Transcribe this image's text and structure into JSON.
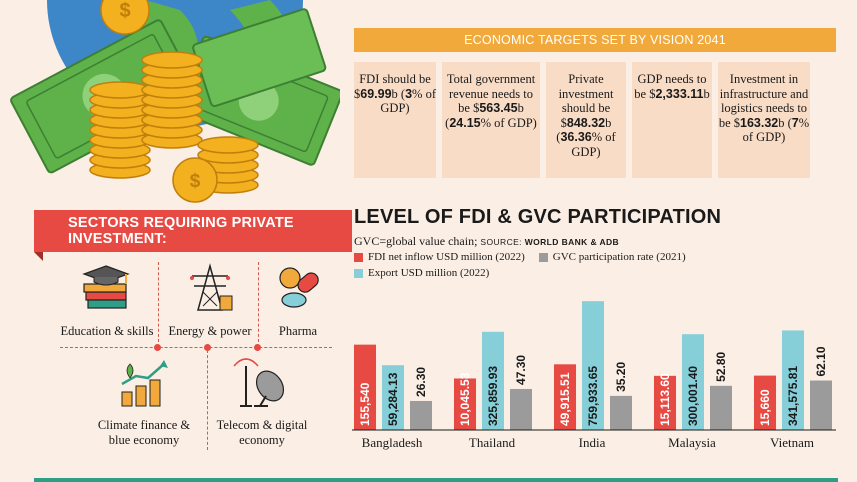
{
  "vision": {
    "header": "ECONOMIC TARGETS SET BY VISION 2041",
    "targets": [
      {
        "pre": "FDI should be $",
        "bold": "69.99",
        "post": "b (",
        "bold2": "3",
        "post2": "% of GDP)"
      },
      {
        "pre": "Total government revenue needs to be $",
        "bold": "563.45",
        "post": "b (",
        "bold2": "24.15",
        "post2": "% of GDP)"
      },
      {
        "pre": "Private investment should be $",
        "bold": "848.32",
        "post": "b (",
        "bold2": "36.36",
        "post2": "% of GDP)"
      },
      {
        "pre": "GDP needs to be $",
        "bold": "2,333.11",
        "post": "b",
        "bold2": "",
        "post2": ""
      },
      {
        "pre": "Investment in infrastructure and logistics needs to be $",
        "bold": "163.32",
        "post": "b (",
        "bold2": "7",
        "post2": "% of GDP)"
      }
    ]
  },
  "sectors": {
    "header": "SECTORS REQUIRING PRIVATE INVESTMENT:",
    "items": [
      {
        "label": "Education & skills",
        "icon": "graduation-books-icon"
      },
      {
        "label": "Energy & power",
        "icon": "power-tower-icon"
      },
      {
        "label": "Pharma",
        "icon": "pills-icon"
      },
      {
        "label": "Climate finance & blue economy",
        "icon": "plant-coins-growth-icon"
      },
      {
        "label": "Telecom & digital economy",
        "icon": "satellite-dish-icon"
      }
    ]
  },
  "chart_data": {
    "type": "bar",
    "title": "LEVEL OF FDI & GVC PARTICIPATION",
    "subtitle": "GVC=global value chain;",
    "source_label": "SOURCE:",
    "source": "WORLD BANK & ADB",
    "categories": [
      "Bangladesh",
      "Thailand",
      "India",
      "Malaysia",
      "Vietnam"
    ],
    "series": [
      {
        "name": "FDI net inflow USD million (2022)",
        "color": "#e64a43",
        "values": [
          155540,
          10045.53,
          49915.51,
          15113.6,
          15660
        ],
        "labels": [
          "155,540",
          "10,045.53",
          "49,915.51",
          "15,113.60",
          "15,660"
        ]
      },
      {
        "name": "Export USD million (2022)",
        "color": "#86cfd9",
        "values": [
          59284.13,
          325859.93,
          759933.65,
          300001.4,
          341575.81
        ],
        "labels": [
          "59,284.13",
          "325,859.93",
          "759,933.65",
          "300,001.40",
          "341,575.81"
        ]
      },
      {
        "name": "GVC participation rate (2021)",
        "color": "#9b9b9b",
        "values": [
          26.3,
          47.3,
          35.2,
          52.8,
          62.1
        ],
        "labels": [
          "26.30",
          "47.30",
          "35.20",
          "52.80",
          "62.10"
        ]
      }
    ]
  }
}
